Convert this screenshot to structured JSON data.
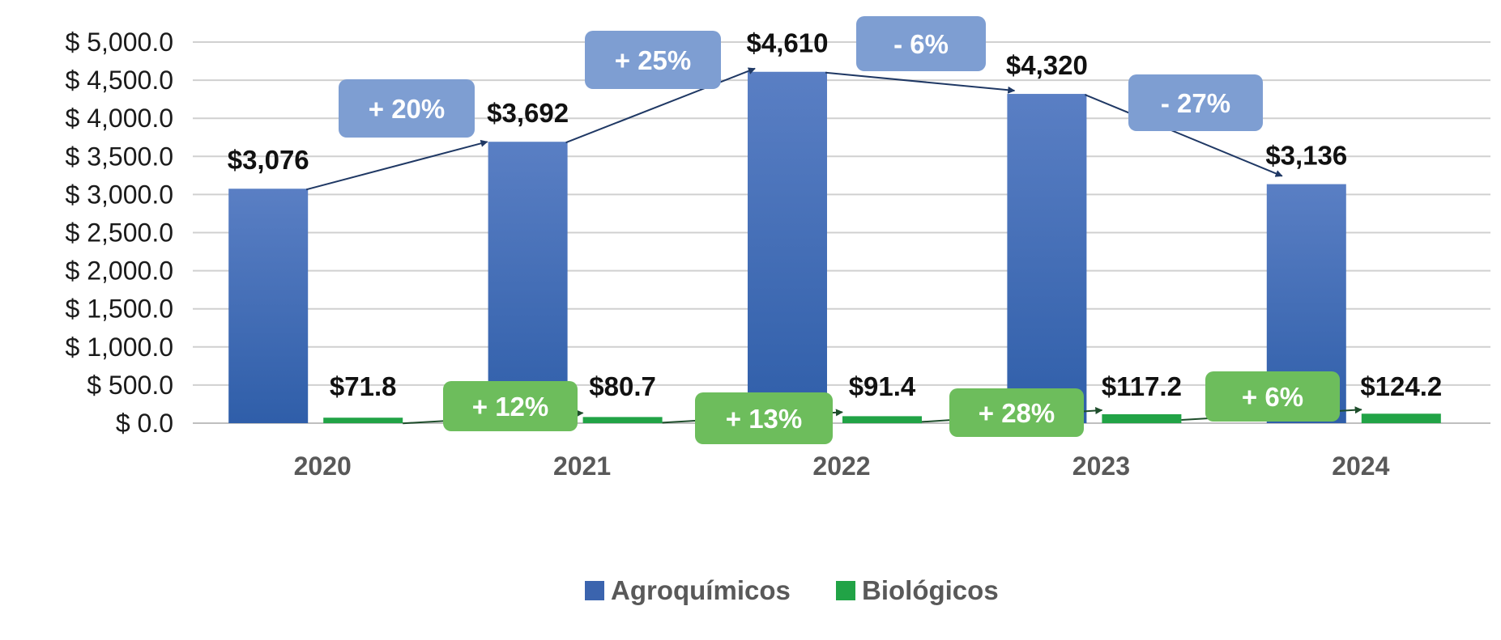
{
  "chart_data": {
    "type": "bar",
    "categories": [
      "2020",
      "2021",
      "2022",
      "2023",
      "2024"
    ],
    "ylim": [
      0,
      5000
    ],
    "yticks": [
      0,
      500,
      1000,
      1500,
      2000,
      2500,
      3000,
      3500,
      4000,
      4500,
      5000
    ],
    "ytick_labels": [
      "$ 0.0",
      "$ 500.0",
      "$ 1,000.0",
      "$ 1,500.0",
      "$ 2,000.0",
      "$ 2,500.0",
      "$ 3,000.0",
      "$ 3,500.0",
      "$ 4,000.0",
      "$ 4,500.0",
      "$ 5,000.0"
    ],
    "grid": true,
    "legend_position": "bottom",
    "series": [
      {
        "name": "Agroquímicos",
        "color": "#3b64ae",
        "values": [
          3076,
          3692,
          4610,
          4320,
          3136
        ],
        "data_labels": [
          "$3,076",
          "$3,692",
          "$4,610",
          "$4,320",
          "$3,136"
        ],
        "growth_labels": [
          "+ 20%",
          "+ 25%",
          "- 6%",
          "- 27%"
        ],
        "callout_color": "#7e9ed2"
      },
      {
        "name": "Biológicos",
        "color": "#21a346",
        "values": [
          71.8,
          80.7,
          91.4,
          117.2,
          124.2
        ],
        "data_labels": [
          "$71.8",
          "$80.7",
          "$91.4",
          "$117.2",
          "$124.2"
        ],
        "growth_labels": [
          "+ 12%",
          "+ 13%",
          "+ 28%",
          "+ 6%"
        ],
        "callout_color": "#6dbd5c"
      }
    ]
  }
}
